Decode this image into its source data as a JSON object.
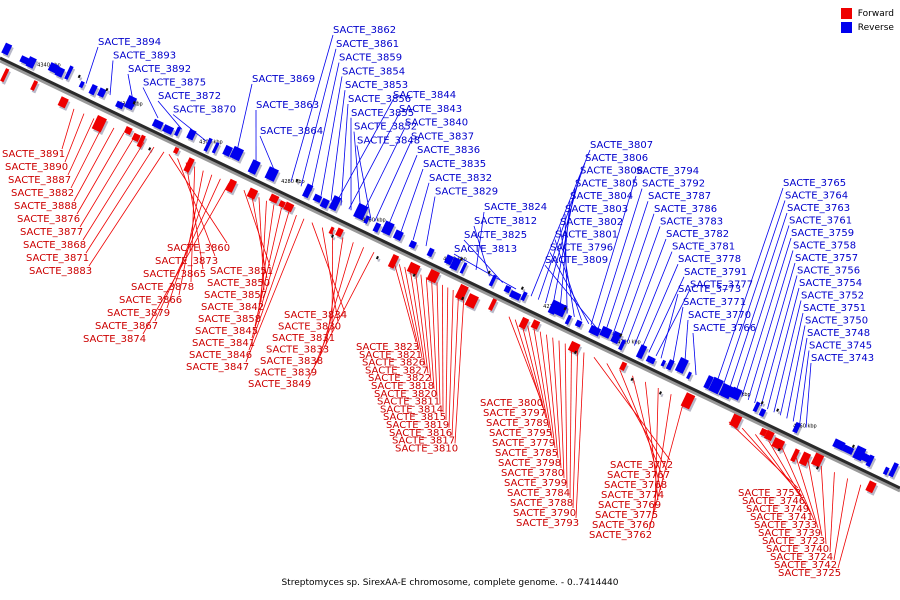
{
  "legend": {
    "forward_label": "Forward",
    "reverse_label": "Reverse",
    "forward_color": "#ee0000",
    "reverse_color": "#0000ee"
  },
  "caption": "Streptomyces sp. SirexAA-E chromosome, complete genome. - 0..7414440",
  "ticks": [
    "4340 kbp",
    "4320 kbp",
    "4300 kbp",
    "4280 kbp",
    "4260 kbp",
    "4240 kbp",
    "4220 kbp",
    "4200 kbp",
    "4180 kbp",
    "4160 kbp"
  ],
  "reverse_genes": [
    "SACTE_3894",
    "SACTE_3893",
    "SACTE_3892",
    "SACTE_3875",
    "SACTE_3872",
    "SACTE_3870",
    "SACTE_3869",
    "SACTE_3863",
    "SACTE_3864",
    "SACTE_3862",
    "SACTE_3861",
    "SACTE_3859",
    "SACTE_3854",
    "SACTE_3853",
    "SACTE_3856",
    "SACTE_3855",
    "SACTE_3852",
    "SACTE_3848",
    "SACTE_3844",
    "SACTE_3843",
    "SACTE_3840",
    "SACTE_3837",
    "SACTE_3836",
    "SACTE_3835",
    "SACTE_3832",
    "SACTE_3829",
    "SACTE_3824",
    "SACTE_3812",
    "SACTE_3825",
    "SACTE_3813",
    "SACTE_3807",
    "SACTE_3806",
    "SACTE_3808",
    "SACTE_3805",
    "SACTE_3804",
    "SACTE_3803",
    "SACTE_3802",
    "SACTE_3801",
    "SACTE_3796",
    "SACTE_3809",
    "SACTE_3794",
    "SACTE_3792",
    "SACTE_3787",
    "SACTE_3786",
    "SACTE_3783",
    "SACTE_3782",
    "SACTE_3781",
    "SACTE_3778",
    "SACTE_3791",
    "SACTE_3777",
    "SACTE_3773",
    "SACTE_3771",
    "SACTE_3770",
    "SACTE_3766",
    "SACTE_3765",
    "SACTE_3764",
    "SACTE_3763",
    "SACTE_3761",
    "SACTE_3759",
    "SACTE_3758",
    "SACTE_3757",
    "SACTE_3756",
    "SACTE_3754",
    "SACTE_3752",
    "SACTE_3751",
    "SACTE_3750",
    "SACTE_3748",
    "SACTE_3745",
    "SACTE_3743"
  ],
  "forward_genes": [
    "SACTE_3891",
    "SACTE_3890",
    "SACTE_3887",
    "SACTE_3882",
    "SACTE_3888",
    "SACTE_3876",
    "SACTE_3877",
    "SACTE_3868",
    "SACTE_3871",
    "SACTE_3883",
    "SACTE_3860",
    "SACTE_3873",
    "SACTE_3865",
    "SACTE_3878",
    "SACTE_3866",
    "SACTE_3879",
    "SACTE_3867",
    "SACTE_3874",
    "SACTE_3851",
    "SACTE_3850",
    "SACTE_3857",
    "SACTE_3842",
    "SACTE_3858",
    "SACTE_3845",
    "SACTE_3841",
    "SACTE_3846",
    "SACTE_3847",
    "SACTE_3834",
    "SACTE_3830",
    "SACTE_3831",
    "SACTE_3833",
    "SACTE_3838",
    "SACTE_3839",
    "SACTE_3849",
    "SACTE_3823",
    "SACTE_3821",
    "SACTE_3826",
    "SACTE_3827",
    "SACTE_3822",
    "SACTE_3818",
    "SACTE_3820",
    "SACTE_3811",
    "SACTE_3814",
    "SACTE_3815",
    "SACTE_3819",
    "SACTE_3816",
    "SACTE_3817",
    "SACTE_3810",
    "SACTE_3800",
    "SACTE_3797",
    "SACTE_3789",
    "SACTE_3795",
    "SACTE_3779",
    "SACTE_3785",
    "SACTE_3798",
    "SACTE_3780",
    "SACTE_3799",
    "SACTE_3784",
    "SACTE_3788",
    "SACTE_3790",
    "SACTE_3793",
    "SACTE_3772",
    "SACTE_3767",
    "SACTE_3768",
    "SACTE_3774",
    "SACTE_3769",
    "SACTE_3775",
    "SACTE_3760",
    "SACTE_3762",
    "SACTE_3753",
    "SACTE_3746",
    "SACTE_3749",
    "SACTE_3741",
    "SACTE_3733",
    "SACTE_3739",
    "SACTE_3723",
    "SACTE_3740",
    "SACTE_3724",
    "SACTE_3742",
    "SACTE_3725"
  ]
}
